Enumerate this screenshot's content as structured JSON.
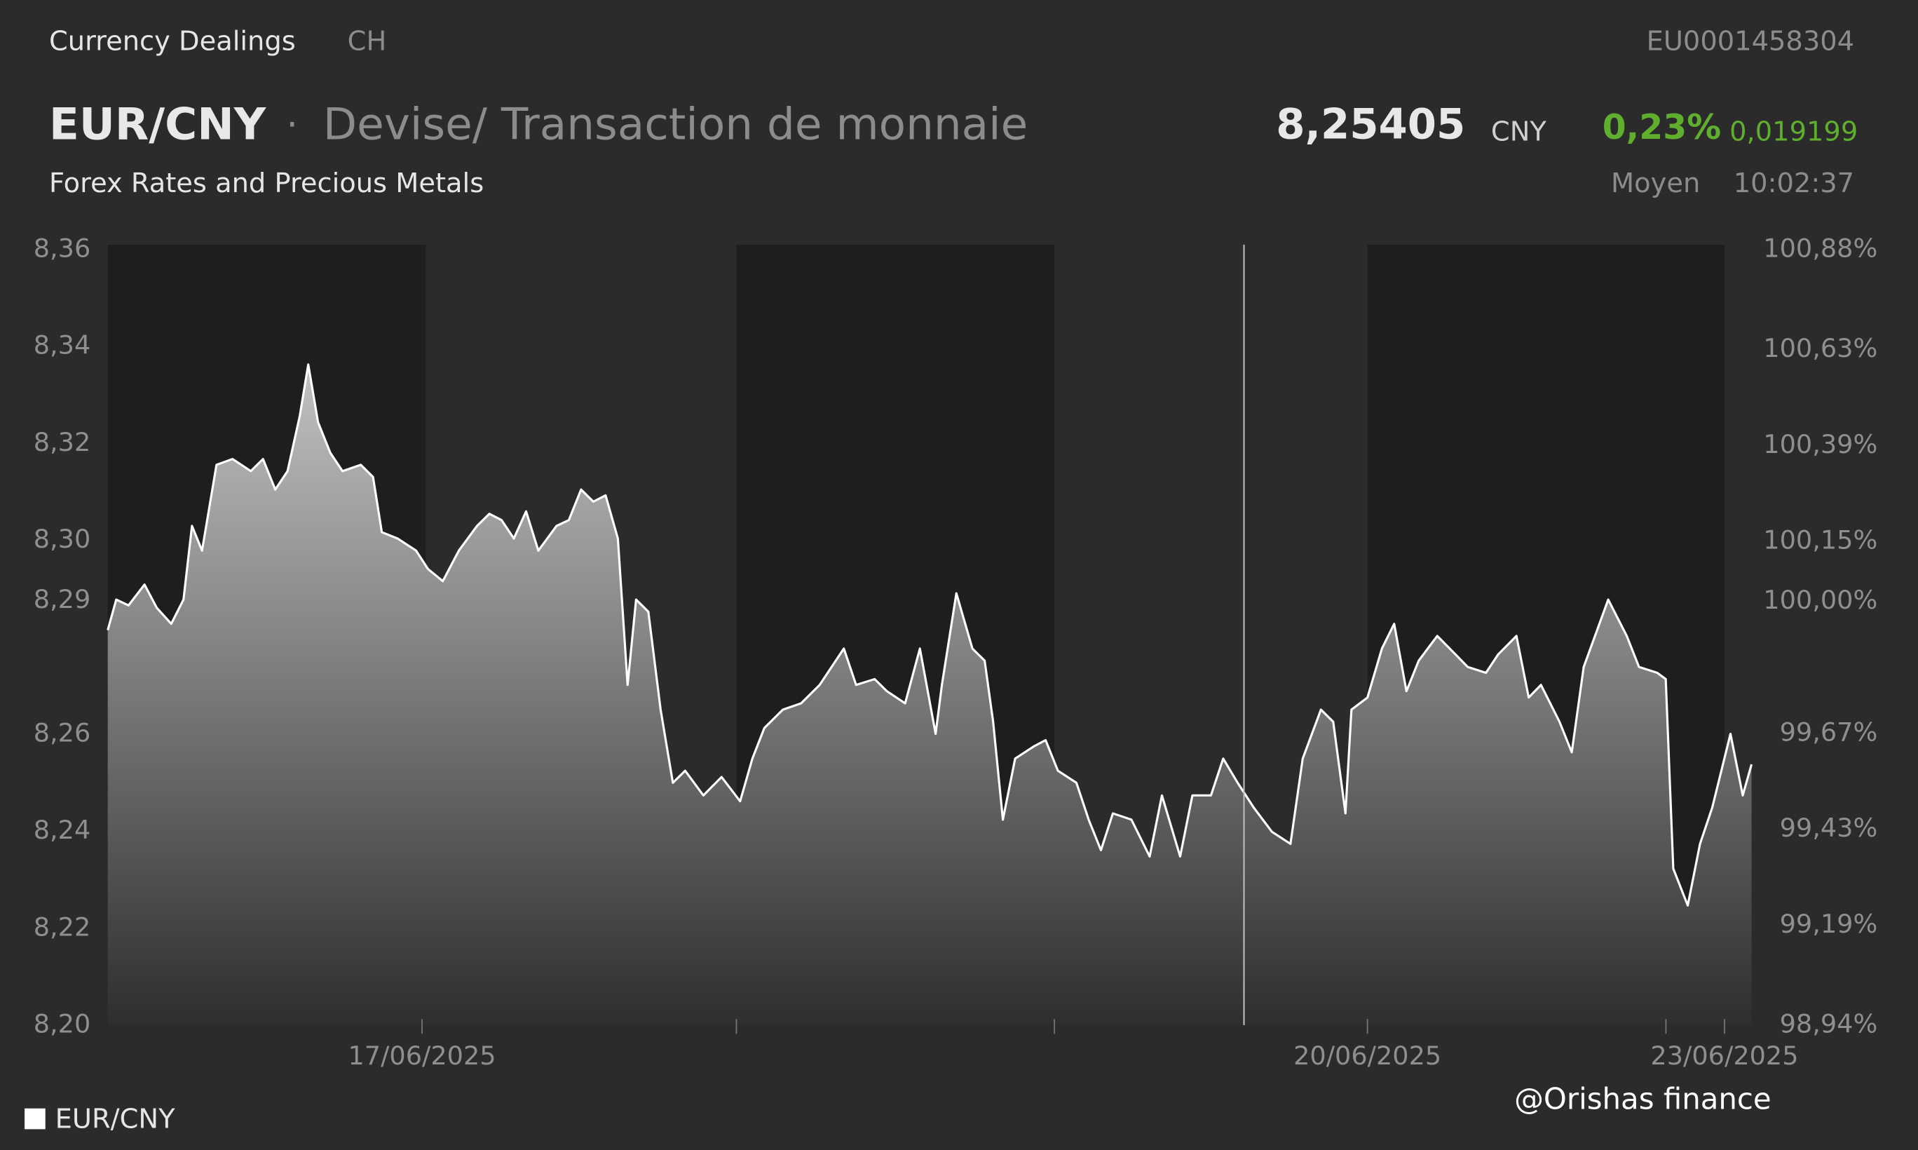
{
  "header": {
    "source": "Currency Dealings",
    "exchange": "CH",
    "isin": "EU0001458304",
    "symbol": "EUR/CNY",
    "separator": "·",
    "description": "Devise/ Transaction de monnaie",
    "category": "Forex Rates and Precious Metals",
    "price": "8,25405",
    "currency": "CNY",
    "change_pct": "0,23%",
    "change_abs": "0,019199",
    "price_type": "Moyen",
    "time": "10:02:37"
  },
  "watermark": "@Orishas finance",
  "chart_data": {
    "type": "area",
    "x": [
      0,
      0.027,
      0.066,
      0.117,
      0.156,
      0.202,
      0.241,
      0.268,
      0.3,
      0.346,
      0.397,
      0.455,
      0.494,
      0.533,
      0.572,
      0.611,
      0.638,
      0.669,
      0.708,
      0.747,
      0.805,
      0.844,
      0.872,
      0.922,
      0.981,
      1.019,
      1.066,
      1.117,
      1.175,
      1.214,
      1.253,
      1.292,
      1.331,
      1.37,
      1.428,
      1.467,
      1.506,
      1.545,
      1.584,
      1.623,
      1.654,
      1.681,
      1.72,
      1.759,
      1.798,
      1.837,
      1.895,
      1.953,
      2.012,
      2.051,
      2.089,
      2.148,
      2.206,
      2.265,
      2.342,
      2.381,
      2.44,
      2.479,
      2.537,
      2.584,
      2.634,
      2.654,
      2.7,
      2.751,
      2.79,
      2.817,
      2.848,
      2.887,
      2.946,
      2.984,
      3.023,
      3.082,
      3.121,
      3.16,
      3.198,
      3.257,
      3.315,
      3.354,
      3.412,
      3.451,
      3.51,
      3.549,
      3.595,
      3.646,
      3.704,
      3.763,
      3.802,
      3.86,
      3.899,
      3.938,
      3.957,
      4.008,
      4.054,
      4.093,
      4.132,
      4.171,
      4.23,
      4.288,
      4.327,
      4.385,
      4.424,
      4.482,
      4.521,
      4.56,
      4.619,
      4.658,
      4.696,
      4.774,
      4.833,
      4.872,
      4.93,
      4.957,
      4.981,
      5.027,
      5.066,
      5.105,
      5.163,
      5.202,
      5.23
    ],
    "series": [
      {
        "name": "EUR/CNY",
        "color": "#ffffff",
        "values": [
          8.2815,
          8.2878,
          8.2866,
          8.2909,
          8.2861,
          8.2828,
          8.2878,
          8.303,
          8.2979,
          8.3156,
          8.3168,
          8.3143,
          8.3168,
          8.3105,
          8.3143,
          8.3257,
          8.3363,
          8.3244,
          8.3181,
          8.3143,
          8.3156,
          8.3131,
          8.3017,
          8.3004,
          8.2979,
          8.2941,
          8.2916,
          8.2979,
          8.303,
          8.3055,
          8.3042,
          8.3004,
          8.306,
          8.2979,
          8.303,
          8.3042,
          8.3105,
          8.308,
          8.3093,
          8.3004,
          8.2702,
          8.2878,
          8.2853,
          8.2651,
          8.25,
          8.2525,
          8.2474,
          8.2512,
          8.2462,
          8.255,
          8.2613,
          8.2651,
          8.2664,
          8.2702,
          8.2777,
          8.2702,
          8.2714,
          8.2689,
          8.2664,
          8.2777,
          8.2601,
          8.2702,
          8.2891,
          8.2777,
          8.2752,
          8.2626,
          8.2424,
          8.255,
          8.2575,
          8.2588,
          8.2525,
          8.25,
          8.2424,
          8.2361,
          8.2437,
          8.2424,
          8.2348,
          8.2474,
          8.2348,
          8.2474,
          8.2474,
          8.255,
          8.25,
          8.2449,
          8.2399,
          8.2374,
          8.255,
          8.2651,
          8.2626,
          8.2437,
          8.2651,
          8.2676,
          8.2777,
          8.2828,
          8.2689,
          8.2752,
          8.2803,
          8.2765,
          8.2739,
          8.2727,
          8.2765,
          8.2803,
          8.2676,
          8.2702,
          8.2626,
          8.2563,
          8.2739,
          8.2878,
          8.2803,
          8.2739,
          8.2727,
          8.2714,
          8.2323,
          8.2247,
          8.2374,
          8.2449,
          8.2601,
          8.2474,
          8.2538
        ]
      }
    ],
    "xlim": [
      0,
      5.23
    ],
    "xticks": [
      {
        "value": 1,
        "label": "17/06/2025"
      },
      {
        "value": 4.008,
        "label": "20/06/2025"
      },
      {
        "value": 5.144,
        "label": "23/06/2025"
      }
    ],
    "ylim": [
      8.2,
      8.36
    ],
    "yticks": [
      {
        "value": 8.2,
        "label": "8,20"
      },
      {
        "value": 8.22,
        "label": "8,22"
      },
      {
        "value": 8.24,
        "label": "8,24"
      },
      {
        "value": 8.26,
        "label": "8,26"
      },
      {
        "value": 8.2876,
        "label": "8,29"
      },
      {
        "value": 8.3,
        "label": "8,30"
      },
      {
        "value": 8.32,
        "label": "8,32"
      },
      {
        "value": 8.34,
        "label": "8,34"
      },
      {
        "value": 8.36,
        "label": "8,36"
      }
    ],
    "y2lim": [
      98.94,
      100.88
    ],
    "y2ticks": [
      {
        "value": 98.94,
        "label": "98,94%"
      },
      {
        "value": 99.19,
        "label": "99,19%"
      },
      {
        "value": 99.43,
        "label": "99,43%"
      },
      {
        "value": 99.67,
        "label": "99,67%"
      },
      {
        "value": 100.0,
        "label": "100,00%"
      },
      {
        "value": 100.15,
        "label": "100,15%"
      },
      {
        "value": 100.39,
        "label": "100,39%"
      },
      {
        "value": 100.63,
        "label": "100,63%"
      },
      {
        "value": 100.88,
        "label": "100,88%"
      }
    ]
  }
}
